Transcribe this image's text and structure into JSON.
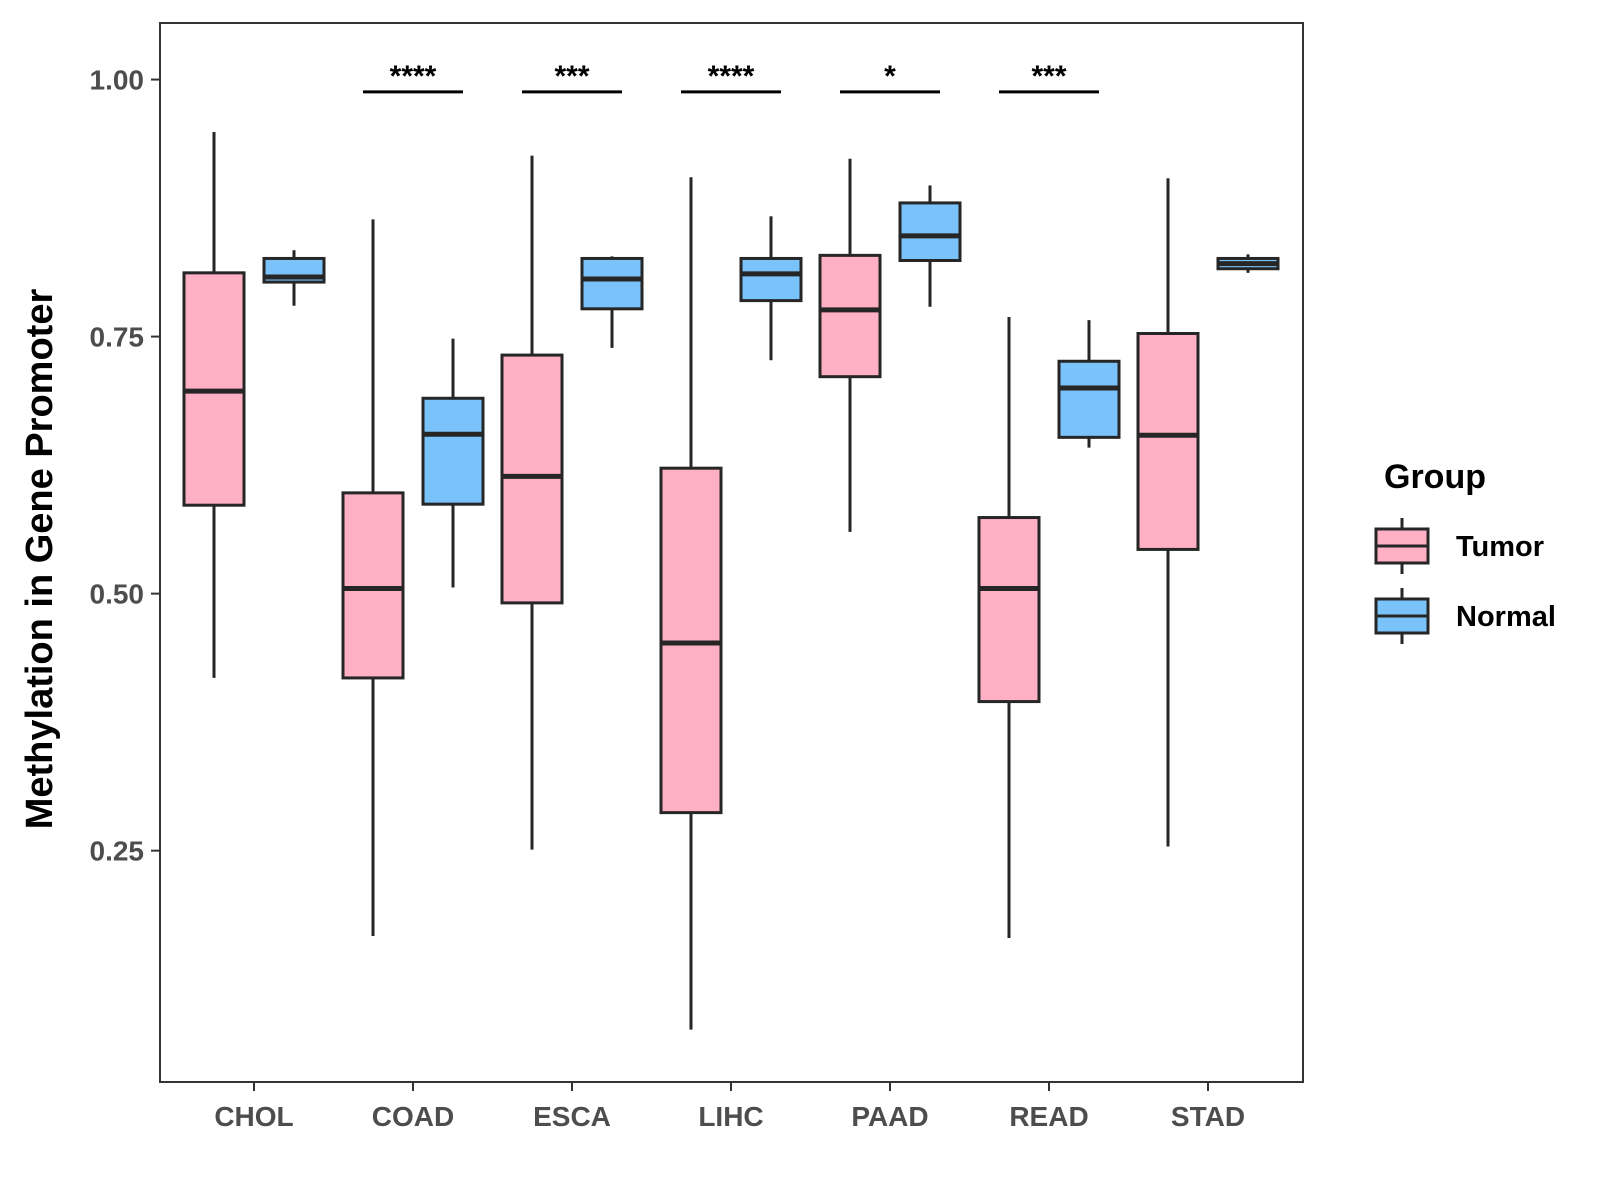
{
  "chart_data": {
    "type": "boxplot",
    "title": "",
    "xlabel": "",
    "ylabel": "Methylation in Gene Promoter",
    "ylim": [
      0.025,
      1.055
    ],
    "yticks": [
      0.25,
      0.5,
      0.75,
      1.0
    ],
    "ytick_labels": [
      "0.25",
      "0.50",
      "0.75",
      "1.00"
    ],
    "grid": false,
    "categories": [
      "CHOL",
      "COAD",
      "ESCA",
      "LIHC",
      "PAAD",
      "READ",
      "STAD"
    ],
    "legend": {
      "title": "Group",
      "position": "right",
      "entries": [
        {
          "name": "Tumor",
          "color": "#ffb0c4"
        },
        {
          "name": "Normal",
          "color": "#7ac2fa"
        }
      ]
    },
    "significance": [
      {
        "category": "COAD",
        "label": "****"
      },
      {
        "category": "ESCA",
        "label": "***"
      },
      {
        "category": "LIHC",
        "label": "****"
      },
      {
        "category": "PAAD",
        "label": "*"
      },
      {
        "category": "READ",
        "label": "***"
      }
    ],
    "series": [
      {
        "name": "Tumor",
        "color": "#ffb0c4",
        "boxes": [
          {
            "min": 0.418,
            "q1": 0.586,
            "median": 0.697,
            "q3": 0.812,
            "max": 0.949
          },
          {
            "min": 0.167,
            "q1": 0.418,
            "median": 0.505,
            "q3": 0.598,
            "max": 0.864
          },
          {
            "min": 0.251,
            "q1": 0.491,
            "median": 0.614,
            "q3": 0.732,
            "max": 0.926
          },
          {
            "min": 0.076,
            "q1": 0.287,
            "median": 0.452,
            "q3": 0.622,
            "max": 0.905
          },
          {
            "min": 0.56,
            "q1": 0.711,
            "median": 0.776,
            "q3": 0.829,
            "max": 0.923
          },
          {
            "min": 0.165,
            "q1": 0.395,
            "median": 0.505,
            "q3": 0.574,
            "max": 0.769
          },
          {
            "min": 0.254,
            "q1": 0.543,
            "median": 0.654,
            "q3": 0.753,
            "max": 0.904
          }
        ]
      },
      {
        "name": "Normal",
        "color": "#7ac2fa",
        "boxes": [
          {
            "min": 0.78,
            "q1": 0.803,
            "median": 0.808,
            "q3": 0.826,
            "max": 0.834
          },
          {
            "min": 0.506,
            "q1": 0.587,
            "median": 0.655,
            "q3": 0.69,
            "max": 0.748
          },
          {
            "min": 0.739,
            "q1": 0.777,
            "median": 0.806,
            "q3": 0.826,
            "max": 0.828
          },
          {
            "min": 0.727,
            "q1": 0.785,
            "median": 0.811,
            "q3": 0.826,
            "max": 0.867
          },
          {
            "min": 0.779,
            "q1": 0.824,
            "median": 0.848,
            "q3": 0.88,
            "max": 0.897
          },
          {
            "min": 0.642,
            "q1": 0.652,
            "median": 0.7,
            "q3": 0.726,
            "max": 0.766
          },
          {
            "min": 0.812,
            "q1": 0.816,
            "median": 0.821,
            "q3": 0.826,
            "max": 0.83
          }
        ]
      }
    ]
  }
}
